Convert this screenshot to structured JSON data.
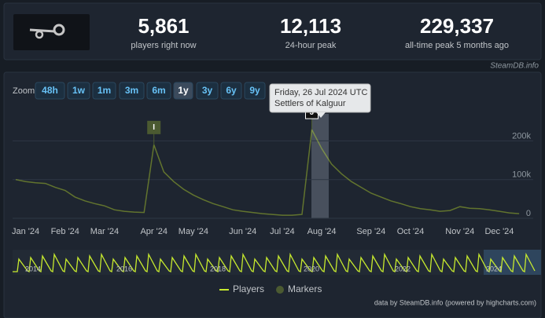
{
  "stats": [
    {
      "value": "5,861",
      "label": "players right now"
    },
    {
      "value": "12,113",
      "label": "24-hour peak"
    },
    {
      "value": "229,337",
      "label": "all-time peak 5 months ago"
    }
  ],
  "chart_data": {
    "type": "line",
    "watermark": "SteamDB.info",
    "zoom_label": "Zoom",
    "zoom_buttons": [
      "48h",
      "1w",
      "1m",
      "3m",
      "6m",
      "1y",
      "3y",
      "6y",
      "9y"
    ],
    "selected_zoom": "1y",
    "tooltip": {
      "date": "Friday, 26 Jul 2024 UTC",
      "text": "Settlers of Kalguur"
    },
    "categories": [
      null,
      "Jan '24",
      null,
      null,
      null,
      "Feb '24",
      null,
      null,
      null,
      "Mar '24",
      null,
      null,
      null,
      null,
      "Apr '24",
      null,
      null,
      null,
      "May '24",
      null,
      null,
      null,
      null,
      "Jun '24",
      null,
      null,
      null,
      "Jul '24",
      null,
      null,
      null,
      "Aug '24",
      null,
      null,
      null,
      null,
      "Sep '24",
      null,
      null,
      null,
      "Oct '24",
      null,
      null,
      null,
      null,
      "Nov '24",
      null,
      null,
      null,
      "Dec '24",
      null,
      null
    ],
    "series": [
      {
        "name": "Players",
        "color": "#c7ea2e",
        "values": [
          100000,
          95000,
          92000,
          90000,
          80000,
          72000,
          55000,
          45000,
          38000,
          32000,
          22000,
          18000,
          16000,
          15000,
          190000,
          120000,
          95000,
          75000,
          60000,
          48000,
          38000,
          30000,
          22000,
          18000,
          15000,
          12000,
          10000,
          8000,
          8000,
          10000,
          229000,
          180000,
          140000,
          115000,
          95000,
          80000,
          65000,
          55000,
          45000,
          38000,
          30000,
          25000,
          22000,
          18000,
          20000,
          30000,
          26000,
          25000,
          22000,
          18000,
          14000,
          12000
        ]
      },
      {
        "name": "Markers",
        "color": "#4b5a31"
      }
    ],
    "flags": [
      {
        "category_index": 14,
        "title": "I"
      },
      {
        "category_index": 30,
        "title": "J"
      }
    ],
    "ylim": [
      0,
      280000
    ],
    "yticks": [
      0,
      {
        "value": 100000,
        "label": "100k"
      },
      {
        "value": 200000,
        "label": "200k"
      }
    ],
    "grid": true,
    "navigator_years": [
      "2014",
      "2016",
      "2018",
      "2020",
      "2022",
      "2024"
    ],
    "credits": "data by SteamDB.info (powered by highcharts.com)"
  }
}
